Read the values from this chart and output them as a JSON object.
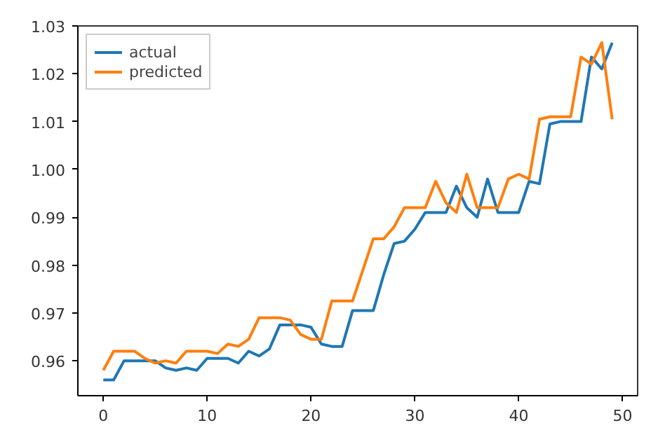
{
  "chart_data": {
    "type": "line",
    "x": [
      0,
      1,
      2,
      3,
      4,
      5,
      6,
      7,
      8,
      9,
      10,
      11,
      12,
      13,
      14,
      15,
      16,
      17,
      18,
      19,
      20,
      21,
      22,
      23,
      24,
      25,
      26,
      27,
      28,
      29,
      30,
      31,
      32,
      33,
      34,
      35,
      36,
      37,
      38,
      39,
      40,
      41,
      42,
      43,
      44,
      45,
      46,
      47,
      48,
      49
    ],
    "series": [
      {
        "name": "actual",
        "color": "#1f77b4",
        "values": [
          0.956,
          0.956,
          0.96,
          0.96,
          0.96,
          0.96,
          0.9585,
          0.958,
          0.9585,
          0.958,
          0.9605,
          0.9605,
          0.9605,
          0.9595,
          0.962,
          0.961,
          0.9625,
          0.9675,
          0.9675,
          0.9675,
          0.967,
          0.9635,
          0.963,
          0.963,
          0.9705,
          0.9705,
          0.9705,
          0.978,
          0.9845,
          0.985,
          0.9875,
          0.991,
          0.991,
          0.991,
          0.9965,
          0.992,
          0.99,
          0.998,
          0.991,
          0.991,
          0.991,
          0.9975,
          0.997,
          1.0095,
          1.01,
          1.01,
          1.01,
          1.0235,
          1.021,
          1.0265
        ]
      },
      {
        "name": "predicted",
        "color": "#ff7f0e",
        "values": [
          0.958,
          0.962,
          0.962,
          0.962,
          0.9605,
          0.9595,
          0.96,
          0.9595,
          0.962,
          0.962,
          0.962,
          0.9615,
          0.9635,
          0.963,
          0.9645,
          0.969,
          0.969,
          0.969,
          0.9685,
          0.9655,
          0.9645,
          0.9645,
          0.9725,
          0.9725,
          0.9725,
          0.979,
          0.9855,
          0.9855,
          0.988,
          0.992,
          0.992,
          0.992,
          0.9975,
          0.993,
          0.991,
          0.999,
          0.992,
          0.992,
          0.992,
          0.998,
          0.999,
          0.998,
          1.0105,
          1.011,
          1.011,
          1.011,
          1.0235,
          1.022,
          1.0265,
          1.0105
        ]
      }
    ],
    "xlim": [
      -2.45,
      51.45
    ],
    "ylim": [
      0.9527,
      1.03
    ],
    "xticks": [
      0,
      10,
      20,
      30,
      40,
      50
    ],
    "yticks": [
      0.96,
      0.97,
      0.98,
      0.99,
      {
        "value": 1.0,
        "label": "1.00"
      },
      1.01,
      1.02,
      1.03
    ],
    "grid": false,
    "legend": "top left",
    "line_style": "solid"
  }
}
